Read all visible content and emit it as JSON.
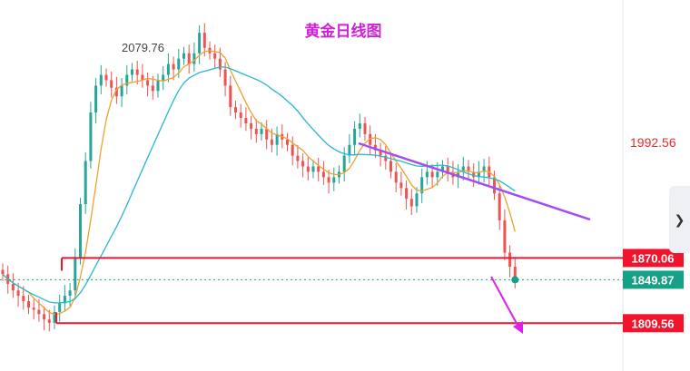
{
  "chart_data": {
    "type": "candlestick",
    "title": "黄金日线图",
    "peak_label": "2079.76",
    "axis_price_label": "1992.56",
    "levels": [
      {
        "name": "resistance",
        "label": "1870.06",
        "value": 1870.06
      },
      {
        "name": "current",
        "label": "1849.87",
        "value": 1849.87
      },
      {
        "name": "support",
        "label": "1809.56",
        "value": 1809.56
      }
    ],
    "ylim": [
      1777,
      2101
    ],
    "x_count": 100,
    "closes": [
      1855,
      1846,
      1840,
      1835,
      1830,
      1824,
      1822,
      1818,
      1813,
      1810,
      1820,
      1828,
      1835,
      1840,
      1870,
      1920,
      1960,
      2005,
      2030,
      2040,
      2035,
      2028,
      2020,
      2030,
      2040,
      2045,
      2040,
      2035,
      2030,
      2025,
      2035,
      2040,
      2050,
      2045,
      2055,
      2060,
      2050,
      2060,
      2079,
      2065,
      2060,
      2055,
      2045,
      2030,
      2010,
      2005,
      2000,
      1995,
      1990,
      1985,
      1990,
      1980,
      1975,
      1985,
      1980,
      1975,
      1965,
      1960,
      1955,
      1950,
      1955,
      1950,
      1945,
      1940,
      1945,
      1950,
      1965,
      1975,
      1990,
      1995,
      1985,
      1975,
      1970,
      1965,
      1960,
      1950,
      1940,
      1935,
      1925,
      1918,
      1930,
      1945,
      1950,
      1945,
      1950,
      1955,
      1950,
      1945,
      1950,
      1955,
      1950,
      1945,
      1950,
      1955,
      1945,
      1930,
      1905,
      1875,
      1862,
      1849.87
    ],
    "ma_short_color": "#f0a030",
    "ma_long_color": "#26b8d0",
    "trendline_color": "#a04ef0",
    "up_color": "#26a69a",
    "down_color": "#ef5350",
    "tag_red": "#f0142d",
    "tag_green": "#16a085",
    "forecast_arrow_color": "#e020e8"
  }
}
